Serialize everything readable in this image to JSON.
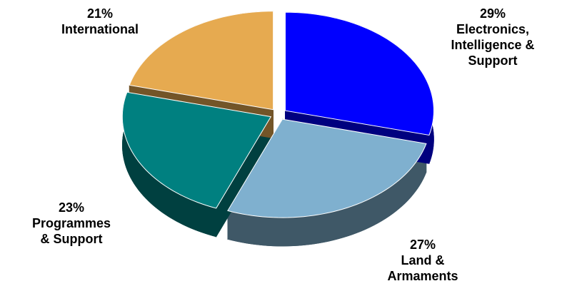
{
  "chart_data": {
    "type": "pie",
    "categories": [
      "Electronics, Intelligence & Support",
      "Land & Armaments",
      "Programmes & Support",
      "International"
    ],
    "values": [
      29,
      27,
      23,
      21
    ],
    "value_labels": [
      "29%",
      "27%",
      "23%",
      "21%"
    ],
    "colors": [
      "#0000ff",
      "#7fb0cf",
      "#008080",
      "#e6aa50"
    ]
  }
}
